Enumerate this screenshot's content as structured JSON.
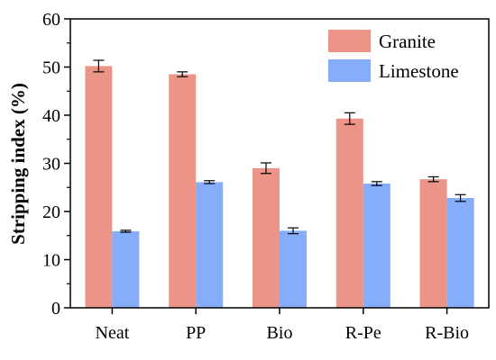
{
  "chart_data": {
    "type": "bar",
    "categories": [
      "Neat",
      "PP",
      "Bio",
      "R-Pe",
      "R-Bio"
    ],
    "series": [
      {
        "name": "Granite",
        "color": "#ec9488",
        "values": [
          50.2,
          48.5,
          29.0,
          39.3,
          26.7
        ],
        "errors": [
          1.2,
          0.5,
          1.1,
          1.2,
          0.5
        ]
      },
      {
        "name": "Limestone",
        "color": "#85adf9",
        "values": [
          15.9,
          26.1,
          16.0,
          25.8,
          22.8
        ],
        "errors": [
          0.2,
          0.3,
          0.6,
          0.4,
          0.7
        ]
      }
    ],
    "title": "",
    "xlabel": "",
    "ylabel": "Stripping index (%)",
    "ylim": [
      0,
      60
    ],
    "yticks": [
      "0",
      "10",
      "20",
      "30",
      "40",
      "50",
      "60"
    ],
    "grid": false,
    "legend_position": "top-right"
  }
}
